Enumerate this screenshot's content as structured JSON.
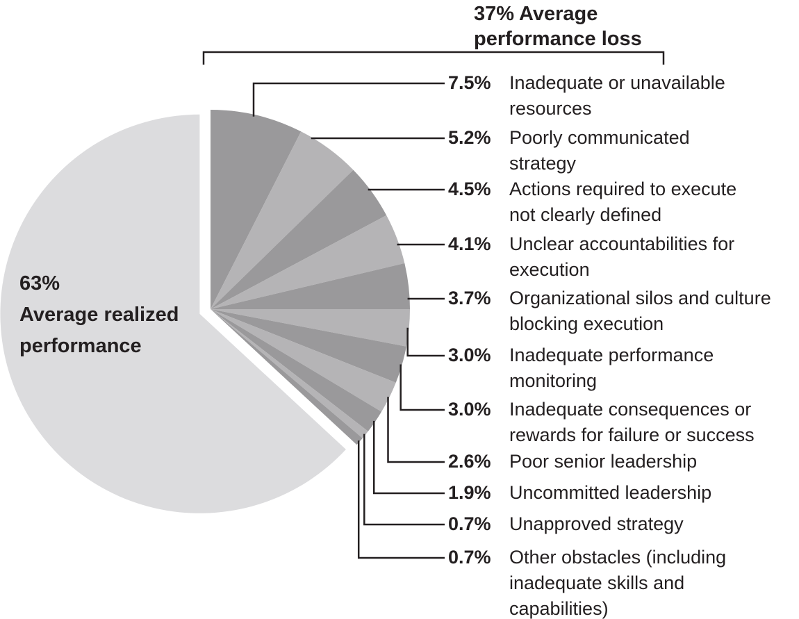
{
  "chart_data": {
    "type": "pie",
    "title": "37% Average\nperformance loss",
    "direction": "clockwise",
    "start_angle_deg": 0,
    "legend_position": "right",
    "colors": {
      "dark": "#9a999b",
      "light": "#b5b4b6",
      "main": "#dcdcde",
      "text": "#231f20",
      "line": "#231f20",
      "background": "#ffffff"
    },
    "main_slice": {
      "value": 63,
      "pct_label": "63%",
      "label": "63%\nAverage realized\nperformance",
      "shade": "main",
      "exploded": true
    },
    "loss_total_value": 37,
    "slices": [
      {
        "value": 7.5,
        "pct_label": "7.5%",
        "label": "Inadequate or unavailable\nresources",
        "shade": "dark"
      },
      {
        "value": 5.2,
        "pct_label": "5.2%",
        "label": "Poorly communicated\nstrategy",
        "shade": "light"
      },
      {
        "value": 4.5,
        "pct_label": "4.5%",
        "label": "Actions required to execute\nnot clearly defined",
        "shade": "dark"
      },
      {
        "value": 4.1,
        "pct_label": "4.1%",
        "label": "Unclear accountabilities for\nexecution",
        "shade": "light"
      },
      {
        "value": 3.7,
        "pct_label": "3.7%",
        "label": "Organizational silos and culture\nblocking execution",
        "shade": "dark"
      },
      {
        "value": 3.0,
        "pct_label": "3.0%",
        "label": "Inadequate performance\nmonitoring",
        "shade": "light"
      },
      {
        "value": 3.0,
        "pct_label": "3.0%",
        "label": "Inadequate consequences or\nrewards for failure or success",
        "shade": "dark"
      },
      {
        "value": 2.6,
        "pct_label": "2.6%",
        "label": "Poor senior leadership",
        "shade": "light"
      },
      {
        "value": 1.9,
        "pct_label": "1.9%",
        "label": "Uncommitted leadership",
        "shade": "dark"
      },
      {
        "value": 0.7,
        "pct_label": "0.7%",
        "label": "Unapproved strategy",
        "shade": "light"
      },
      {
        "value": 0.7,
        "pct_label": "0.7%",
        "label": "Other obstacles (including\ninadequate skills and\ncapabilities)",
        "shade": "dark"
      }
    ]
  }
}
